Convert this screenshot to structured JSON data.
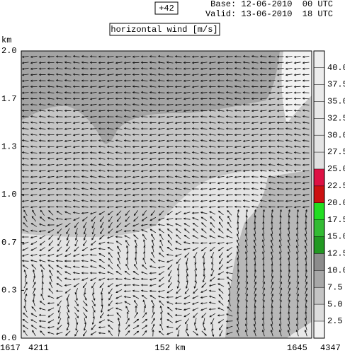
{
  "chart_data": {
    "type": "contour",
    "title": "horizontal wind [m/s]",
    "forecast_step": "+42",
    "base": "Base: 12-06-2010  00 UTC",
    "valid": "Valid: 13-06-2010  18 UTC",
    "ylabel": "km",
    "ylim": [
      0,
      2
    ],
    "yticks": [
      {
        "value": 2,
        "label": "2.0"
      },
      {
        "value": 1.667,
        "label": "1.7"
      },
      {
        "value": 1.333,
        "label": "1.3"
      },
      {
        "value": 1,
        "label": "1.0"
      },
      {
        "value": 0.667,
        "label": "0.7"
      },
      {
        "value": 0.333,
        "label": "0.3"
      },
      {
        "value": 0,
        "label": "0.0"
      }
    ],
    "x_labels": [
      "1617",
      "4211",
      "152 km",
      "1645",
      "4347"
    ],
    "colorbar": {
      "levels": [
        {
          "value": 2.5,
          "label": "2.5"
        },
        {
          "value": 5,
          "label": "5.0"
        },
        {
          "value": 7.5,
          "label": "7.5"
        },
        {
          "value": 10,
          "label": "10.0"
        },
        {
          "value": 12.5,
          "label": "12.5"
        },
        {
          "value": 15,
          "label": "15.0"
        },
        {
          "value": 17.5,
          "label": "17.5"
        },
        {
          "value": 20,
          "label": "20.0"
        },
        {
          "value": 22.5,
          "label": "22.5"
        },
        {
          "value": 25,
          "label": "25.0"
        },
        {
          "value": 27.5,
          "label": "27.5"
        },
        {
          "value": 30,
          "label": "30.0"
        },
        {
          "value": 32.5,
          "label": "32.5"
        },
        {
          "value": 35,
          "label": "35.0"
        },
        {
          "value": 37.5,
          "label": "37.5"
        },
        {
          "value": 40,
          "label": "40.0"
        }
      ],
      "colors": [
        "#f2f2f2",
        "#dcdcdc",
        "#c4c4c4",
        "#a8a8a8",
        "#8c8c8c",
        "#229922",
        "#33bb33",
        "#22dd22",
        "#cc1111",
        "#dd1144",
        "#e0e0e0",
        "#e4e4e4",
        "#e6e6e6",
        "#e8e8e8",
        "#eaeaea",
        "#ececec",
        "#eeeeee"
      ]
    }
  }
}
